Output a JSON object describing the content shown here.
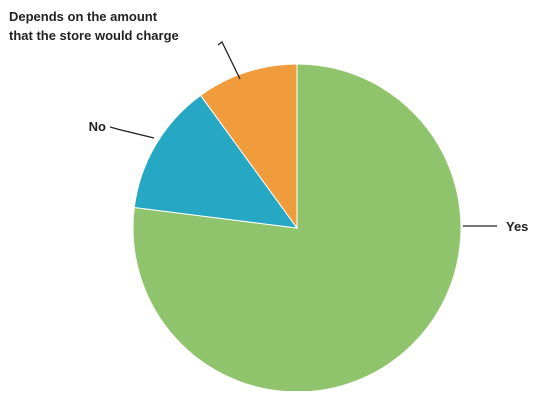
{
  "chart_data": {
    "type": "pie",
    "title": "",
    "slices": [
      {
        "label": "Yes",
        "value": 77,
        "color": "#90c46c"
      },
      {
        "label": "No",
        "value": 13,
        "color": "#26a8c4"
      },
      {
        "label_lines": [
          "Depends on the amount",
          "that the store would charge"
        ],
        "value": 10,
        "color": "#f09c3c"
      }
    ],
    "start_angle_deg": 0,
    "direction": "clockwise",
    "legend": "none",
    "slice_border_color": "#ffffff"
  }
}
